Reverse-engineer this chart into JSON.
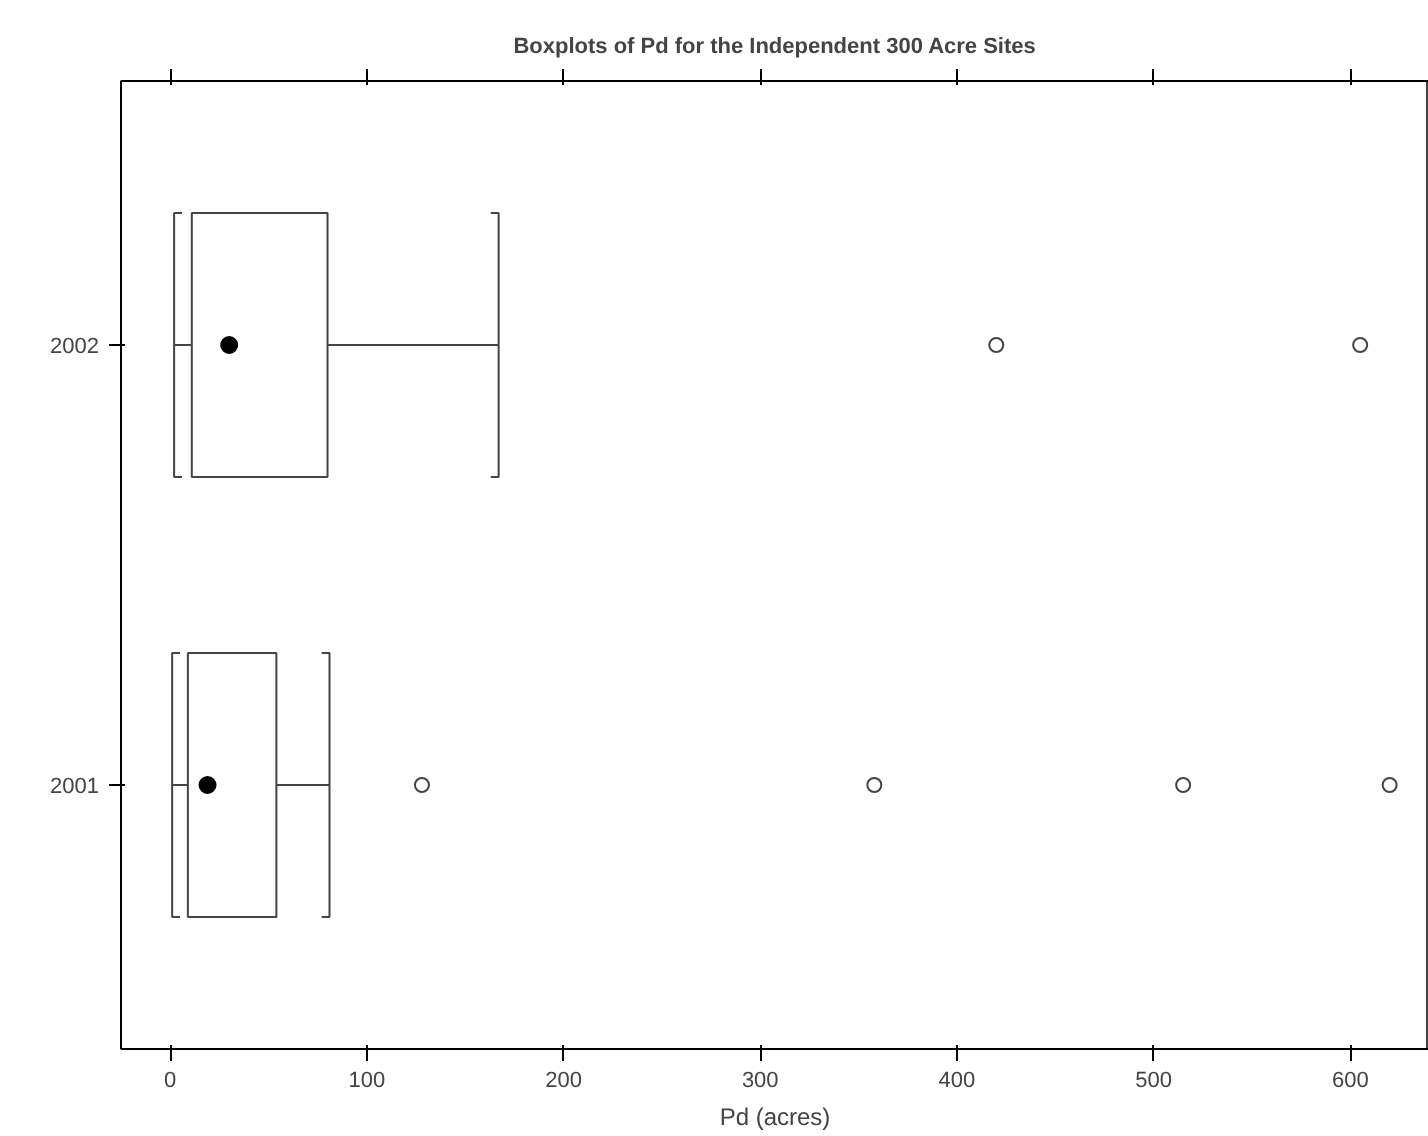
{
  "chart_data": {
    "type": "box",
    "orientation": "horizontal",
    "title": "Boxplots of Pd for the Independent 300 Acre Sites",
    "xlabel": "Pd (acres)",
    "categories": [
      "2002",
      "2001"
    ],
    "boxes": [
      {
        "low": 2,
        "q1": 11,
        "median": 30,
        "q3": 80,
        "high": 167,
        "outliers": [
          420,
          605
        ]
      },
      {
        "low": 1,
        "q1": 9,
        "median": 19,
        "q3": 54,
        "high": 81,
        "outliers": [
          128,
          358,
          515,
          620
        ]
      }
    ],
    "color": "#444444",
    "xlim": [
      -25,
      640
    ],
    "xticks": [
      0,
      100,
      200,
      300,
      400,
      500,
      600
    ],
    "grid": false
  }
}
